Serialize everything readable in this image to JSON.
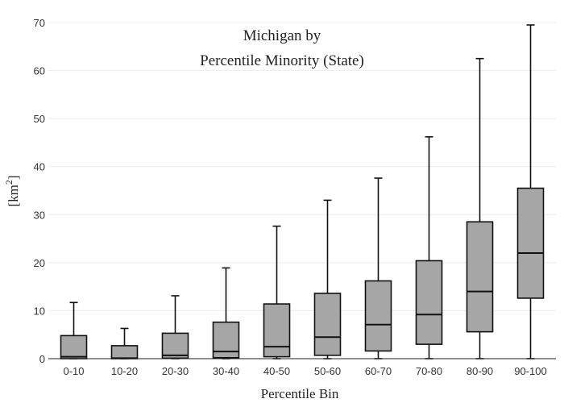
{
  "chart_data": {
    "type": "box",
    "title": [
      "Michigan  by",
      "Percentile Minority (State)"
    ],
    "xlabel": "Percentile Bin",
    "ylabel": "[km²]",
    "ylabel_base": "[km",
    "ylabel_sup": "2",
    "ylabel_close": "]",
    "ylim": [
      0,
      70
    ],
    "yticks": [
      0,
      10,
      20,
      30,
      40,
      50,
      60,
      70
    ],
    "grid": true,
    "categories": [
      "0-10",
      "10-20",
      "20-30",
      "30-40",
      "40-50",
      "50-60",
      "60-70",
      "70-80",
      "80-90",
      "90-100"
    ],
    "boxes": [
      {
        "min": 0,
        "q1": 0.0,
        "median": 0.4,
        "q3": 4.8,
        "max": 11.7
      },
      {
        "min": 0,
        "q1": 0.0,
        "median": 0.1,
        "q3": 2.7,
        "max": 6.3
      },
      {
        "min": 0,
        "q1": 0.1,
        "median": 0.7,
        "q3": 5.3,
        "max": 13.1
      },
      {
        "min": 0,
        "q1": 0.2,
        "median": 1.5,
        "q3": 7.6,
        "max": 18.9
      },
      {
        "min": 0,
        "q1": 0.4,
        "median": 2.5,
        "q3": 11.4,
        "max": 27.6
      },
      {
        "min": 0,
        "q1": 0.7,
        "median": 4.5,
        "q3": 13.6,
        "max": 33.0
      },
      {
        "min": 0,
        "q1": 1.6,
        "median": 7.1,
        "q3": 16.2,
        "max": 37.6
      },
      {
        "min": 0,
        "q1": 3.0,
        "median": 9.2,
        "q3": 20.4,
        "max": 46.2
      },
      {
        "min": 0,
        "q1": 5.6,
        "median": 14.0,
        "q3": 28.5,
        "max": 62.5
      },
      {
        "min": 0,
        "q1": 12.6,
        "median": 22.0,
        "q3": 35.5,
        "max": 69.5
      }
    ]
  }
}
